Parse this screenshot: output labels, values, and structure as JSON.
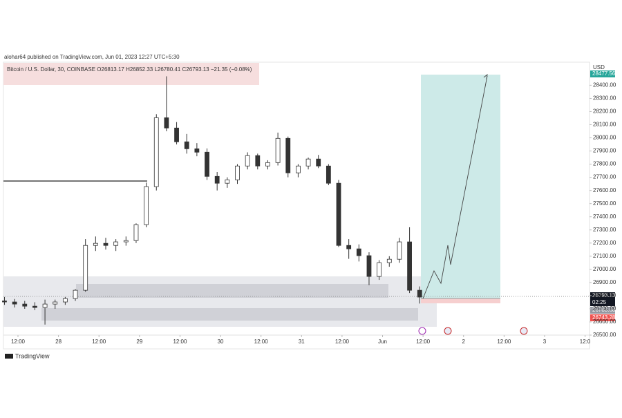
{
  "header": {
    "publisher": "alohar64 published on TradingView.com, Jun 01, 2023 12:27 UTC+5:30"
  },
  "footer": {
    "brand": "TradingView"
  },
  "chart_data": {
    "type": "candlestick",
    "legend": "Bitcoin / U.S. Dollar, 30, COINBASE  O26813.17  H26852.33  L26780.41  C26793.13  −21.35 (−0.08%)",
    "currency": "USD",
    "color": "#333333",
    "x": [
      8,
      11,
      14,
      17,
      20,
      23,
      26,
      29,
      32,
      35,
      38,
      41,
      44,
      47,
      50,
      53,
      56,
      59,
      62,
      65,
      68,
      71,
      74,
      77,
      80,
      83,
      86,
      89,
      92,
      95,
      98,
      101,
      104,
      107,
      110,
      113,
      116,
      119,
      122,
      125,
      128,
      131
    ],
    "open": [
      26760,
      26752,
      26736,
      26720,
      26710,
      26736,
      26752,
      26778,
      26841,
      27182,
      27198,
      27182,
      27209,
      27219,
      27340,
      27629,
      28153,
      28075,
      27970,
      27917,
      27891,
      27707,
      27655,
      27681,
      27786,
      27865,
      27786,
      27812,
      27996,
      27734,
      27786,
      27839,
      27786,
      27655,
      27182,
      27156,
      27104,
      26946,
      27051,
      27077,
      27209,
      26841
    ],
    "high": [
      26790,
      26775,
      26760,
      26750,
      26770,
      26770,
      26790,
      26850,
      27230,
      27250,
      27240,
      27230,
      27250,
      27350,
      27660,
      28180,
      28468,
      28120,
      28030,
      27960,
      27920,
      27740,
      27700,
      27800,
      27890,
      27880,
      27830,
      28040,
      28010,
      27800,
      27850,
      27870,
      27800,
      27680,
      27230,
      27190,
      27130,
      27070,
      27100,
      27240,
      27320,
      26870
    ],
    "low": [
      26730,
      26710,
      26700,
      26690,
      26580,
      26700,
      26730,
      26760,
      26830,
      27140,
      27150,
      27140,
      27180,
      27200,
      27320,
      27600,
      28050,
      27950,
      27880,
      27860,
      27680,
      27600,
      27620,
      27650,
      27760,
      27760,
      27760,
      27790,
      27700,
      27700,
      27760,
      27770,
      27640,
      27170,
      27080,
      27060,
      26880,
      26920,
      27020,
      27050,
      26820,
      26740
    ],
    "close": [
      26752,
      26736,
      26720,
      26710,
      26736,
      26752,
      26778,
      26841,
      27182,
      27198,
      27182,
      27209,
      27219,
      27340,
      27629,
      28153,
      28075,
      27970,
      27917,
      27891,
      27707,
      27655,
      27681,
      27786,
      27865,
      27786,
      27812,
      27996,
      27734,
      27786,
      27839,
      27786,
      27655,
      27182,
      27156,
      27104,
      26946,
      27051,
      27077,
      27209,
      26841,
      26789
    ],
    "xlim": [
      7.7,
      180.7
    ],
    "xticks": [
      {
        "value": 12,
        "label": "12:00"
      },
      {
        "value": 24,
        "label": "28"
      },
      {
        "value": 36,
        "label": "12:00"
      },
      {
        "value": 48,
        "label": "29"
      },
      {
        "value": 60,
        "label": "12:00"
      },
      {
        "value": 72,
        "label": "30"
      },
      {
        "value": 84,
        "label": "12:00"
      },
      {
        "value": 96,
        "label": "31"
      },
      {
        "value": 108,
        "label": "12:00"
      },
      {
        "value": 120,
        "label": "Jun"
      },
      {
        "value": 132,
        "label": "12:00"
      },
      {
        "value": 144,
        "label": "2"
      },
      {
        "value": 156,
        "label": "12:00"
      },
      {
        "value": 168,
        "label": "3"
      },
      {
        "value": 180,
        "label": "12:0"
      }
    ],
    "ylim": [
      26395,
      28565
    ],
    "yticks": [
      {
        "value": 26500,
        "label": "26500.00"
      },
      {
        "value": 26600,
        "label": "26600.00"
      },
      {
        "value": 26700,
        "label": "26700.00"
      },
      {
        "value": 26800,
        "label": "26800.00"
      },
      {
        "value": 26900,
        "label": "26900.00"
      },
      {
        "value": 27000,
        "label": "27000.00"
      },
      {
        "value": 27100,
        "label": "27100.00"
      },
      {
        "value": 27200,
        "label": "27200.00"
      },
      {
        "value": 27300,
        "label": "27300.00"
      },
      {
        "value": 27400,
        "label": "27400.00"
      },
      {
        "value": 27500,
        "label": "27500.00"
      },
      {
        "value": 27600,
        "label": "27600.00"
      },
      {
        "value": 27700,
        "label": "27700.00"
      },
      {
        "value": 27800,
        "label": "27800.00"
      },
      {
        "value": 27900,
        "label": "27900.00"
      },
      {
        "value": 28000,
        "label": "28000.00"
      },
      {
        "value": 28100,
        "label": "28100.00"
      },
      {
        "value": 28200,
        "label": "28200.00"
      },
      {
        "value": 28300,
        "label": "28300.00"
      },
      {
        "value": 28400,
        "label": "28400.00"
      }
    ],
    "grid": false,
    "price_labels": {
      "target": "28477.56",
      "last": "26793.13",
      "countdown": "02:25",
      "prev": "26783.68",
      "stop": "26743.28"
    }
  }
}
